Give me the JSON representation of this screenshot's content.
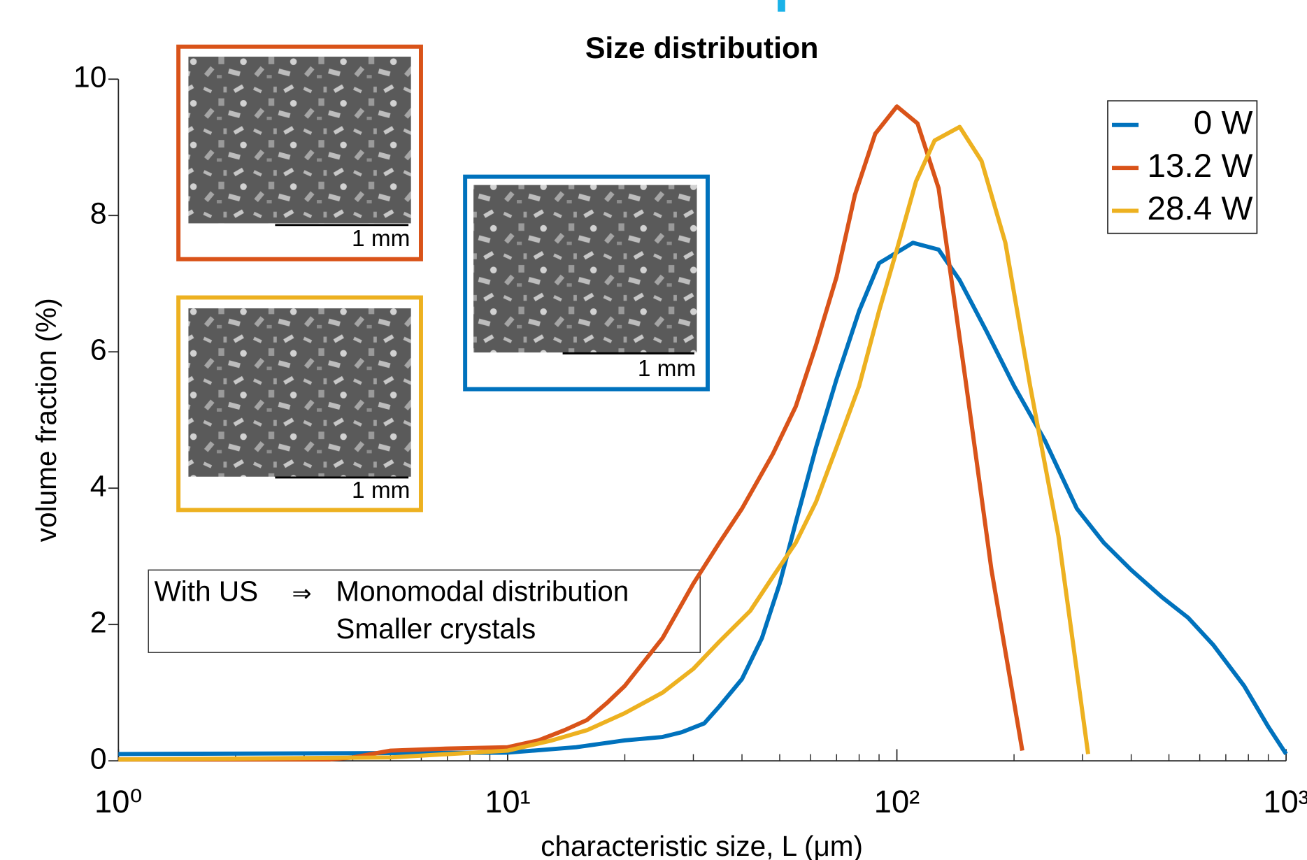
{
  "chart_data": {
    "type": "line",
    "title": "Size distribution",
    "xlabel": "characteristic size, L (μm)",
    "ylabel": "volume fraction (%)",
    "xscale": "log",
    "xlim": [
      1,
      1000
    ],
    "ylim": [
      0,
      10
    ],
    "xticks": [
      {
        "value": 1,
        "label": "10⁰"
      },
      {
        "value": 10,
        "label": "10¹"
      },
      {
        "value": 100,
        "label": "10²"
      },
      {
        "value": 1000,
        "label": "10³"
      }
    ],
    "xticks_minor": [
      2,
      3,
      4,
      5,
      6,
      7,
      8,
      9,
      20,
      30,
      40,
      50,
      60,
      70,
      80,
      90,
      200,
      300,
      400,
      500,
      600,
      700,
      800,
      900
    ],
    "yticks": [
      0,
      2,
      4,
      6,
      8,
      10
    ],
    "legend": "upper right",
    "series": [
      {
        "name": "0 W",
        "color": "#0072bd",
        "x": [
          1,
          10,
          15,
          20,
          25,
          28,
          32,
          35,
          40,
          45,
          50,
          55,
          62,
          70,
          80,
          90,
          110,
          128,
          145,
          170,
          200,
          240,
          290,
          340,
          400,
          480,
          560,
          650,
          780,
          900,
          1000
        ],
        "values": [
          0.1,
          0.12,
          0.2,
          0.3,
          0.35,
          0.42,
          0.55,
          0.8,
          1.2,
          1.8,
          2.6,
          3.5,
          4.6,
          5.6,
          6.6,
          7.3,
          7.6,
          7.5,
          7.05,
          6.3,
          5.5,
          4.7,
          3.7,
          3.2,
          2.8,
          2.4,
          2.1,
          1.7,
          1.1,
          0.5,
          0.1
        ]
      },
      {
        "name": "13.2 W",
        "color": "#d95319",
        "x": [
          1,
          3.5,
          4,
          5,
          7,
          10,
          12,
          14,
          16,
          18,
          20,
          25,
          30,
          35,
          40,
          48,
          55,
          62,
          70,
          78,
          88,
          100,
          113,
          128,
          150,
          175,
          210
        ],
        "values": [
          0.02,
          0.02,
          0.05,
          0.15,
          0.18,
          0.2,
          0.3,
          0.45,
          0.6,
          0.85,
          1.1,
          1.8,
          2.6,
          3.2,
          3.7,
          4.5,
          5.2,
          6.1,
          7.1,
          8.3,
          9.2,
          9.6,
          9.35,
          8.4,
          5.6,
          2.8,
          0.15
        ]
      },
      {
        "name": "28.4 W",
        "color": "#edb120",
        "x": [
          1,
          5,
          10,
          13,
          16,
          20,
          25,
          30,
          35,
          42,
          48,
          55,
          62,
          70,
          80,
          90,
          100,
          112,
          125,
          145,
          165,
          190,
          220,
          260,
          310
        ],
        "values": [
          0.02,
          0.05,
          0.15,
          0.3,
          0.45,
          0.7,
          1.0,
          1.35,
          1.75,
          2.2,
          2.7,
          3.2,
          3.8,
          4.6,
          5.5,
          6.6,
          7.5,
          8.5,
          9.1,
          9.3,
          8.8,
          7.6,
          5.5,
          3.3,
          0.1
        ]
      }
    ],
    "insets": [
      {
        "color": "#d95319",
        "scale_label": "1 mm"
      },
      {
        "color": "#edb120",
        "scale_label": "1 mm"
      },
      {
        "color": "#0072bd",
        "scale_label": "1 mm"
      }
    ],
    "annotation": {
      "lead": "With US",
      "arrow": "⇒",
      "lines": [
        "Monomodal distribution",
        "Smaller crystals"
      ]
    }
  }
}
